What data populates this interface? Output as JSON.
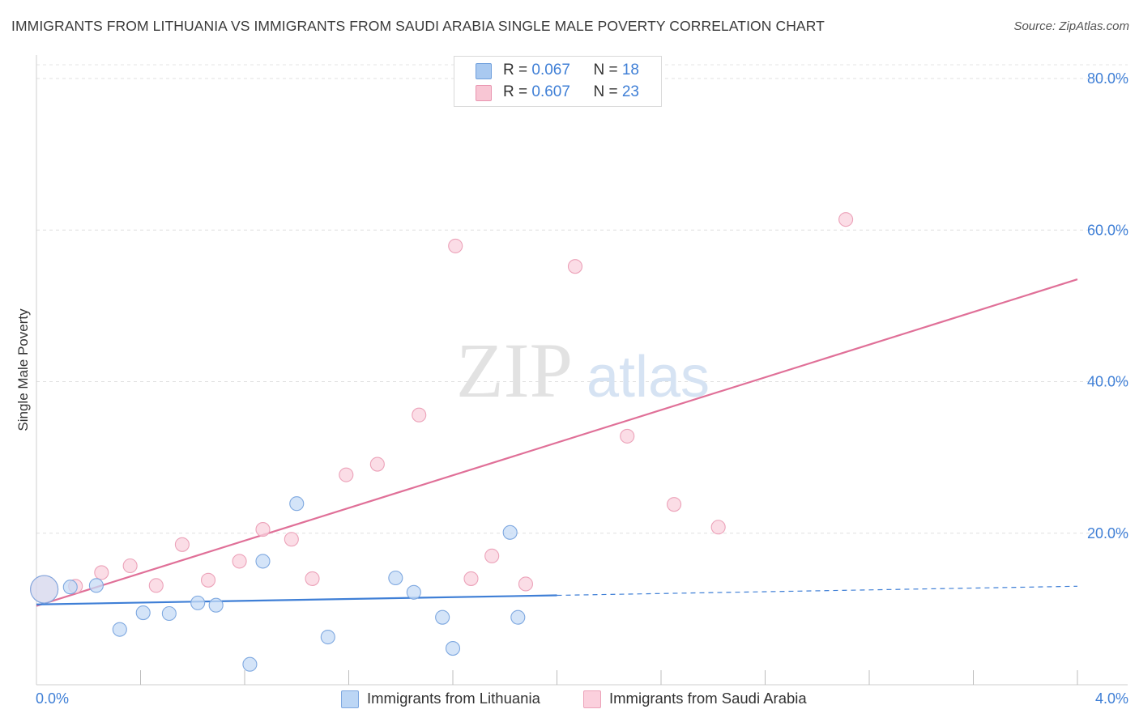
{
  "title": "IMMIGRANTS FROM LITHUANIA VS IMMIGRANTS FROM SAUDI ARABIA SINGLE MALE POVERTY CORRELATION CHART",
  "source": "Source: ZipAtlas.com",
  "watermark": {
    "zip": "ZIP",
    "atlas": "atlas"
  },
  "legend": {
    "r_label": "R = ",
    "n_label": "N = ",
    "rows": [
      {
        "r": "0.067",
        "n": "18",
        "color": "#a9c9f0",
        "border": "#6f9fdc"
      },
      {
        "r": "0.607",
        "n": "23",
        "color": "#f8c6d4",
        "border": "#e995b0"
      }
    ]
  },
  "bottom_legend": [
    {
      "label": "Immigrants from Lithuania",
      "color": "#bcd6f5",
      "border": "#7ea8e0"
    },
    {
      "label": "Immigrants from Saudi Arabia",
      "color": "#fbd0dd",
      "border": "#eca2b9"
    }
  ],
  "colors": {
    "blue": "#3f7fd6",
    "pink": "#e07098",
    "blue_fill": "#c6dbf6",
    "pink_fill": "#f9d1dd"
  },
  "chart_data": {
    "type": "scatter",
    "title": "IMMIGRANTS FROM LITHUANIA VS IMMIGRANTS FROM SAUDI ARABIA SINGLE MALE POVERTY CORRELATION CHART",
    "xlabel": "",
    "ylabel": "Single Male Poverty",
    "xlim": [
      0.0,
      4.0
    ],
    "ylim": [
      0.0,
      80.0
    ],
    "x_tick_labels": [
      "0.0%",
      "4.0%"
    ],
    "y_ticks": [
      20,
      40,
      60,
      80
    ],
    "y_tick_labels": [
      "20.0%",
      "40.0%",
      "60.0%",
      "80.0%"
    ],
    "grid": true,
    "series": [
      {
        "name": "Immigrants from Lithuania",
        "R": 0.067,
        "N": 18,
        "points": [
          {
            "x": 0.03,
            "y": 12.6,
            "big": true
          },
          {
            "x": 0.13,
            "y": 12.9
          },
          {
            "x": 0.23,
            "y": 13.1
          },
          {
            "x": 0.32,
            "y": 7.3
          },
          {
            "x": 0.41,
            "y": 9.5
          },
          {
            "x": 0.51,
            "y": 9.4
          },
          {
            "x": 0.62,
            "y": 10.8
          },
          {
            "x": 0.69,
            "y": 10.5
          },
          {
            "x": 0.82,
            "y": 2.7
          },
          {
            "x": 0.87,
            "y": 16.3
          },
          {
            "x": 1.0,
            "y": 23.9
          },
          {
            "x": 1.12,
            "y": 6.3
          },
          {
            "x": 1.38,
            "y": 14.1
          },
          {
            "x": 1.45,
            "y": 12.2
          },
          {
            "x": 1.56,
            "y": 8.9
          },
          {
            "x": 1.6,
            "y": 4.8
          },
          {
            "x": 1.82,
            "y": 20.1
          },
          {
            "x": 1.85,
            "y": 8.9
          }
        ],
        "trend_solid": {
          "x": [
            0.0,
            2.0
          ],
          "y": [
            10.6,
            11.8
          ]
        },
        "trend_dashed": {
          "x": [
            2.0,
            4.0
          ],
          "y": [
            11.8,
            13.0
          ]
        }
      },
      {
        "name": "Immigrants from Saudi Arabia",
        "R": 0.607,
        "N": 23,
        "points": [
          {
            "x": 0.03,
            "y": 12.6,
            "big": true
          },
          {
            "x": 0.15,
            "y": 13.0
          },
          {
            "x": 0.25,
            "y": 14.8
          },
          {
            "x": 0.36,
            "y": 15.7
          },
          {
            "x": 0.46,
            "y": 13.1
          },
          {
            "x": 0.56,
            "y": 18.5
          },
          {
            "x": 0.66,
            "y": 13.8
          },
          {
            "x": 0.78,
            "y": 16.3
          },
          {
            "x": 0.87,
            "y": 20.5
          },
          {
            "x": 0.98,
            "y": 19.2
          },
          {
            "x": 1.06,
            "y": 14.0
          },
          {
            "x": 1.19,
            "y": 27.7
          },
          {
            "x": 1.31,
            "y": 29.1
          },
          {
            "x": 1.47,
            "y": 35.6
          },
          {
            "x": 1.61,
            "y": 57.9
          },
          {
            "x": 1.67,
            "y": 14.0
          },
          {
            "x": 1.75,
            "y": 17.0
          },
          {
            "x": 1.88,
            "y": 13.3
          },
          {
            "x": 2.07,
            "y": 55.2
          },
          {
            "x": 2.27,
            "y": 32.8
          },
          {
            "x": 2.45,
            "y": 23.8
          },
          {
            "x": 2.62,
            "y": 20.8
          },
          {
            "x": 3.11,
            "y": 61.4
          }
        ],
        "trend_solid": {
          "x": [
            0.0,
            4.0
          ],
          "y": [
            10.4,
            53.5
          ]
        }
      }
    ]
  }
}
